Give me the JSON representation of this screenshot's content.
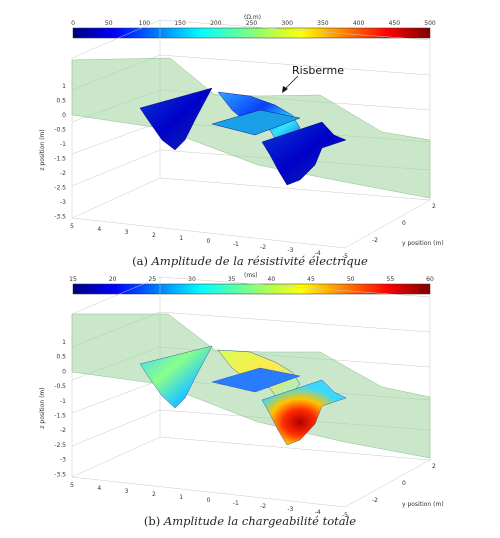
{
  "figure": {
    "panel_a": {
      "colorbar": {
        "unit": "(Ω.m)",
        "ticks": [
          "0",
          "50",
          "100",
          "150",
          "200",
          "250",
          "300",
          "350",
          "400",
          "450",
          "500"
        ]
      },
      "annotation": "Risberme",
      "axes": {
        "z_label": "z position (m)",
        "z_ticks": [
          "1",
          "0.5",
          "0",
          "-0.5",
          "-1",
          "-1.5",
          "-2",
          "-2.5",
          "-3",
          "-3.5"
        ],
        "x_ticks": [
          "5",
          "4",
          "3",
          "2",
          "1",
          "0",
          "-1",
          "-2",
          "-3",
          "-4",
          "-5"
        ],
        "y_label": "y position (m)",
        "y_ticks": [
          "2",
          "0",
          "-2"
        ]
      },
      "caption_prefix": "(a)",
      "caption_text": "Amplitude de la résistivité électrique"
    },
    "panel_b": {
      "colorbar": {
        "unit": "(ms)",
        "ticks": [
          "15",
          "20",
          "25",
          "30",
          "35",
          "40",
          "45",
          "50",
          "55",
          "60"
        ]
      },
      "axes": {
        "z_label": "z position (m)",
        "z_ticks": [
          "1",
          "0.5",
          "0",
          "-0.5",
          "-1",
          "-1.5",
          "-2",
          "-2.5",
          "-3",
          "-3.5"
        ],
        "x_ticks": [
          "5",
          "4",
          "3",
          "2",
          "1",
          "0",
          "-1",
          "-2",
          "-3",
          "-4",
          "-5"
        ],
        "y_label": "y position (m)",
        "y_ticks": [
          "2",
          "0",
          "-2"
        ]
      },
      "caption_prefix": "(b)",
      "caption_text": "Amplitude la chargeabilité totale"
    }
  }
}
